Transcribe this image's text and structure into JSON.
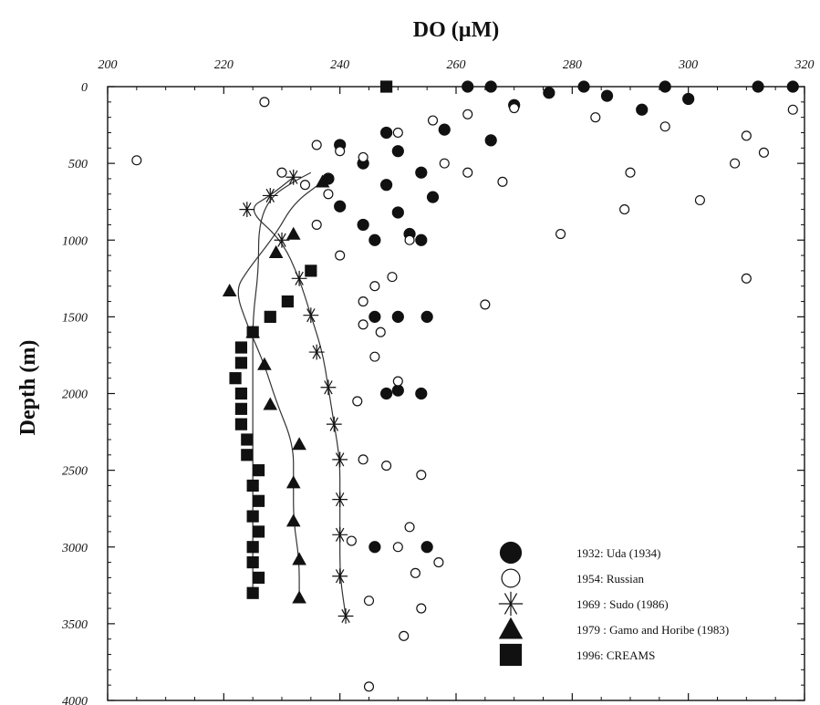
{
  "chart_data": {
    "type": "scatter",
    "title": "DO (µM)",
    "xlabel": "DO (µM)",
    "ylabel": "Depth (m)",
    "xlim": [
      200,
      320
    ],
    "ylim": [
      0,
      4000
    ],
    "y_inverted": true,
    "x_axis_position": "top",
    "x_ticks": [
      "200",
      "220",
      "240",
      "260",
      "280",
      "300",
      "320"
    ],
    "y_ticks": [
      "0",
      "500",
      "1000",
      "1500",
      "2000",
      "2500",
      "3000",
      "3500",
      "4000"
    ],
    "grid": false,
    "legend_position": "bottom-right",
    "series": [
      {
        "name": "1932: Uda (1934)",
        "marker": "filled-circle",
        "color": "#111111",
        "points": [
          [
            262,
            0
          ],
          [
            266,
            0
          ],
          [
            282,
            0
          ],
          [
            296,
            0
          ],
          [
            312,
            0
          ],
          [
            318,
            0
          ],
          [
            276,
            40
          ],
          [
            286,
            60
          ],
          [
            300,
            80
          ],
          [
            270,
            120
          ],
          [
            292,
            150
          ],
          [
            248,
            300
          ],
          [
            258,
            280
          ],
          [
            266,
            350
          ],
          [
            240,
            380
          ],
          [
            250,
            420
          ],
          [
            244,
            500
          ],
          [
            254,
            560
          ],
          [
            238,
            600
          ],
          [
            248,
            640
          ],
          [
            256,
            720
          ],
          [
            240,
            780
          ],
          [
            250,
            820
          ],
          [
            244,
            900
          ],
          [
            252,
            960
          ],
          [
            246,
            1000
          ],
          [
            254,
            1000
          ],
          [
            250,
            1500
          ],
          [
            255,
            1500
          ],
          [
            246,
            1500
          ],
          [
            248,
            2000
          ],
          [
            254,
            2000
          ],
          [
            250,
            1980
          ],
          [
            246,
            3000
          ],
          [
            255,
            3000
          ]
        ]
      },
      {
        "name": "1954: Russian",
        "marker": "open-circle",
        "color": "#111111",
        "points": [
          [
            205,
            480
          ],
          [
            227,
            100
          ],
          [
            236,
            380
          ],
          [
            240,
            420
          ],
          [
            244,
            460
          ],
          [
            250,
            300
          ],
          [
            256,
            220
          ],
          [
            262,
            180
          ],
          [
            270,
            140
          ],
          [
            284,
            200
          ],
          [
            296,
            260
          ],
          [
            310,
            320
          ],
          [
            318,
            150
          ],
          [
            313,
            430
          ],
          [
            308,
            500
          ],
          [
            290,
            560
          ],
          [
            302,
            740
          ],
          [
            289,
            800
          ],
          [
            278,
            960
          ],
          [
            265,
            1420
          ],
          [
            310,
            1250
          ],
          [
            244,
            1550
          ],
          [
            247,
            1600
          ],
          [
            243,
            2050
          ],
          [
            250,
            1920
          ],
          [
            246,
            1760
          ],
          [
            248,
            2470
          ],
          [
            244,
            2430
          ],
          [
            252,
            2870
          ],
          [
            250,
            3000
          ],
          [
            257,
            3100
          ],
          [
            253,
            3170
          ],
          [
            245,
            3350
          ],
          [
            254,
            3400
          ],
          [
            251,
            3580
          ],
          [
            245,
            3910
          ],
          [
            252,
            1000
          ],
          [
            236,
            900
          ],
          [
            240,
            1100
          ],
          [
            246,
            1300
          ],
          [
            244,
            1400
          ],
          [
            249,
            1240
          ],
          [
            258,
            500
          ],
          [
            262,
            560
          ],
          [
            268,
            620
          ],
          [
            230,
            560
          ],
          [
            234,
            640
          ],
          [
            238,
            700
          ],
          [
            254,
            2530
          ],
          [
            242,
            2960
          ]
        ]
      },
      {
        "name": "1969 : Sudo (1986)",
        "marker": "asterisk",
        "color": "#111111",
        "points": [
          [
            224,
            800
          ],
          [
            228,
            710
          ],
          [
            230,
            1000
          ],
          [
            233,
            1250
          ],
          [
            235,
            1490
          ],
          [
            236,
            1730
          ],
          [
            238,
            1960
          ],
          [
            239,
            2200
          ],
          [
            240,
            2430
          ],
          [
            240,
            2690
          ],
          [
            240,
            2920
          ],
          [
            240,
            3190
          ],
          [
            241,
            3450
          ],
          [
            232,
            590
          ]
        ]
      },
      {
        "name": "1979 : Gamo and Horibe (1983)",
        "marker": "filled-triangle",
        "color": "#111111",
        "points": [
          [
            237,
            620
          ],
          [
            232,
            960
          ],
          [
            229,
            1080
          ],
          [
            221,
            1330
          ],
          [
            225,
            1600
          ],
          [
            227,
            1810
          ],
          [
            228,
            2070
          ],
          [
            233,
            2330
          ],
          [
            232,
            2580
          ],
          [
            232,
            2830
          ],
          [
            233,
            3080
          ],
          [
            233,
            3330
          ]
        ]
      },
      {
        "name": "1996: CREAMS",
        "marker": "filled-square",
        "color": "#111111",
        "points": [
          [
            248,
            0
          ],
          [
            235,
            1200
          ],
          [
            231,
            1400
          ],
          [
            228,
            1500
          ],
          [
            225,
            1600
          ],
          [
            223,
            1700
          ],
          [
            223,
            1800
          ],
          [
            222,
            1900
          ],
          [
            223,
            2000
          ],
          [
            223,
            2100
          ],
          [
            223,
            2200
          ],
          [
            224,
            2300
          ],
          [
            224,
            2400
          ],
          [
            226,
            2500
          ],
          [
            225,
            2600
          ],
          [
            226,
            2700
          ],
          [
            225,
            2800
          ],
          [
            226,
            2900
          ],
          [
            225,
            3000
          ],
          [
            225,
            3100
          ],
          [
            226,
            3200
          ],
          [
            225,
            3300
          ]
        ]
      }
    ],
    "fitted_curves": [
      {
        "series": "1969 : Sudo (1986)",
        "points": [
          [
            232,
            590
          ],
          [
            228,
            710
          ],
          [
            224,
            800
          ],
          [
            230,
            1000
          ],
          [
            233,
            1250
          ],
          [
            235,
            1490
          ],
          [
            237,
            1730
          ],
          [
            238,
            1960
          ],
          [
            239,
            2200
          ],
          [
            240,
            2430
          ],
          [
            240,
            2690
          ],
          [
            240,
            2920
          ],
          [
            240,
            3190
          ],
          [
            241,
            3450
          ]
        ]
      },
      {
        "series": "1979 : Gamo and Horibe (1983)",
        "points": [
          [
            237,
            620
          ],
          [
            232,
            760
          ],
          [
            229,
            960
          ],
          [
            224,
            1200
          ],
          [
            222,
            1330
          ],
          [
            224,
            1550
          ],
          [
            227,
            1810
          ],
          [
            229,
            2050
          ],
          [
            232,
            2330
          ],
          [
            232,
            2580
          ],
          [
            232,
            2830
          ],
          [
            233,
            3080
          ],
          [
            233,
            3330
          ]
        ]
      },
      {
        "series": "1996: CREAMS",
        "points": [
          [
            235,
            560
          ],
          [
            232,
            620
          ],
          [
            228,
            720
          ],
          [
            226,
            900
          ],
          [
            226,
            1200
          ],
          [
            225,
            1500
          ],
          [
            225,
            1800
          ],
          [
            225,
            2100
          ],
          [
            225,
            2500
          ],
          [
            225,
            2900
          ],
          [
            225,
            3330
          ]
        ]
      }
    ],
    "background_cloud_description_excluded": true
  }
}
